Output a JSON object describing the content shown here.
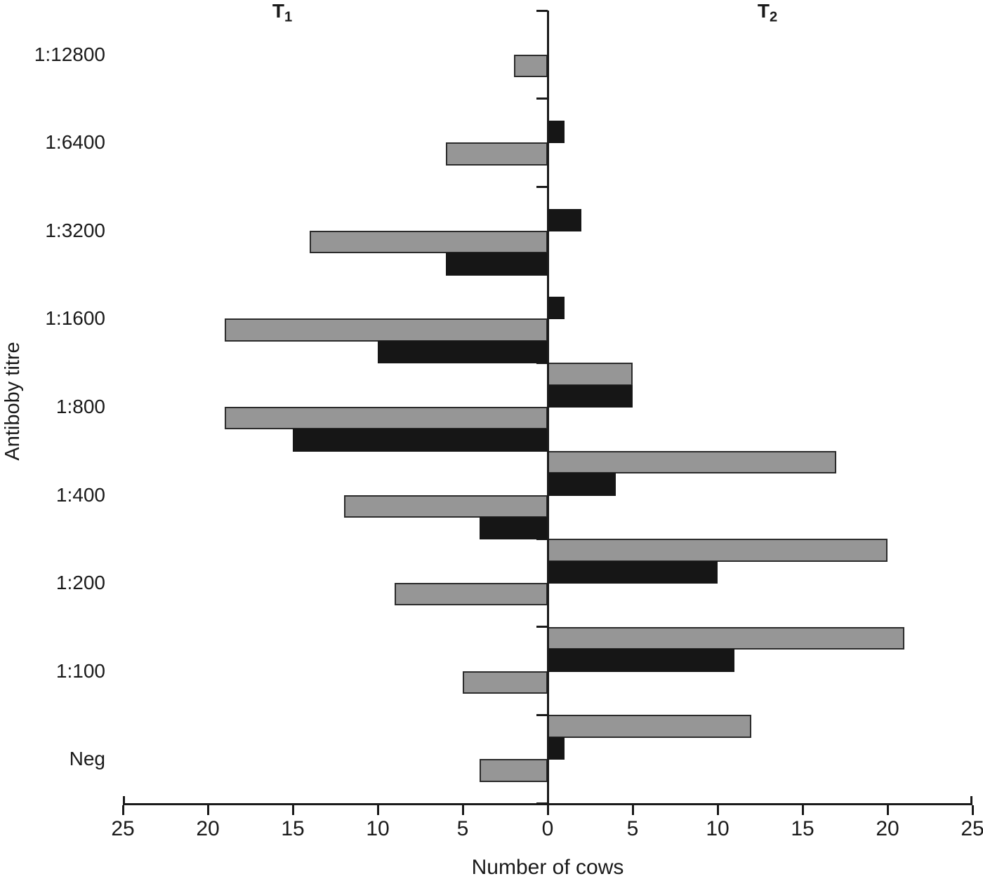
{
  "figure": {
    "background": "#ffffff",
    "text_color": "#1a1a1a",
    "axis_color": "#1a1a1a"
  },
  "chart_data": {
    "type": "bar",
    "variant": "diverging-horizontal",
    "title_left": {
      "base": "T",
      "sub": "1"
    },
    "title_right": {
      "base": "T",
      "sub": "2"
    },
    "xlabel": "Number of cows",
    "ylabel": "Antiboby titre",
    "axis_max": 25,
    "x_ticks_left": [
      25,
      20,
      15,
      10,
      5
    ],
    "x_tick_zero": 0,
    "x_ticks_right": [
      5,
      10,
      15,
      20,
      25
    ],
    "categories": [
      "1:12800",
      "1:6400",
      "1:3200",
      "1:1600",
      "1:800",
      "1:400",
      "1:200",
      "1:100",
      "Neg"
    ],
    "series": [
      {
        "name": "T2 gray",
        "side": "right",
        "slot": 0,
        "color": "#969696",
        "border": "#2b2b2b",
        "values": [
          0,
          0,
          0,
          0,
          5,
          17,
          20,
          21,
          12
        ]
      },
      {
        "name": "T2 black",
        "side": "right",
        "slot": 1,
        "color": "#161616",
        "border": "#161616",
        "values": [
          0,
          1,
          2,
          1,
          5,
          4,
          10,
          11,
          1
        ]
      },
      {
        "name": "T1 gray",
        "side": "left",
        "slot": 2,
        "color": "#969696",
        "border": "#2b2b2b",
        "values": [
          2,
          6,
          14,
          19,
          19,
          12,
          9,
          5,
          4
        ]
      },
      {
        "name": "T1 black",
        "side": "left",
        "slot": 3,
        "color": "#161616",
        "border": "#161616",
        "values": [
          0,
          0,
          6,
          10,
          15,
          4,
          0,
          0,
          0
        ]
      }
    ],
    "grid": false,
    "legend": "none"
  },
  "layout_values": {
    "note": "pixel geometry only"
  }
}
